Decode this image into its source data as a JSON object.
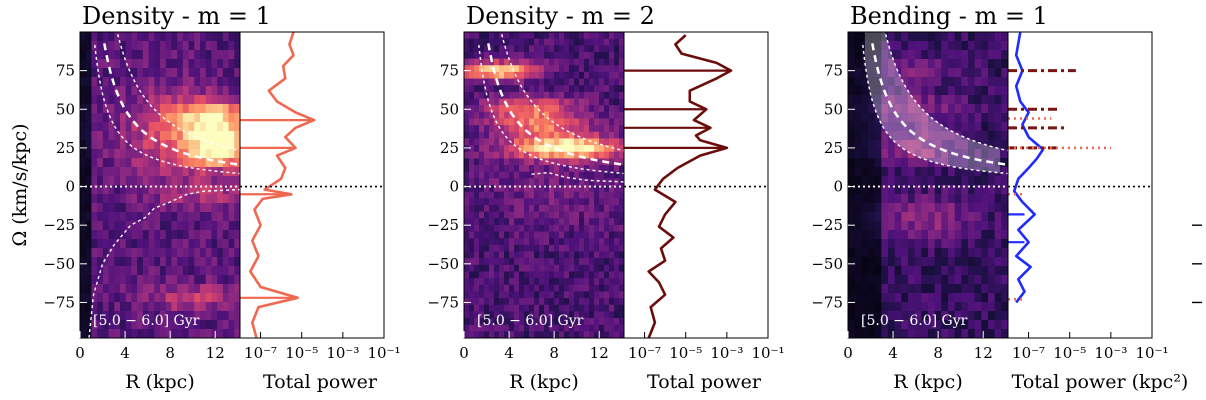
{
  "colors": {
    "density_m1": "#f0684f",
    "density_m2": "#6b0d0b",
    "bending": "#1f2bff",
    "bending_dashdot": "#7a1612",
    "bending_dotted": "#f0684f"
  },
  "chart_data": [
    {
      "type": "heatmap",
      "title": "Density - m = 1",
      "xlabel": "R (kpc)",
      "ylabel": "Ω (km/s/kpc)",
      "xticks": [
        "0",
        "4",
        "8",
        "12"
      ],
      "yticks": [
        "75",
        "50",
        "25",
        "0",
        "−25",
        "−50",
        "−75"
      ],
      "xlim": [
        0,
        14.2
      ],
      "ylim": [
        -98,
        100
      ],
      "inset_label": "[5.0 − 6.0] Gyr",
      "power_panel": {
        "type": "line",
        "xlabel": "Total power",
        "xticks": [
          "10⁻⁷",
          "10⁻⁵",
          "10⁻³",
          "10⁻¹"
        ],
        "xlim_log10": [
          -8,
          -1
        ],
        "profile": [
          [
            -7.2,
            -98
          ],
          [
            -7.4,
            -88
          ],
          [
            -7.1,
            -78
          ],
          [
            -5.2,
            -72
          ],
          [
            -7.0,
            -65
          ],
          [
            -7.5,
            -55
          ],
          [
            -7.1,
            -45
          ],
          [
            -7.4,
            -35
          ],
          [
            -7.0,
            -25
          ],
          [
            -7.3,
            -15
          ],
          [
            -6.9,
            -8
          ],
          [
            -5.5,
            -5
          ],
          [
            -6.8,
            -2
          ],
          [
            -6.0,
            5
          ],
          [
            -5.8,
            12
          ],
          [
            -6.2,
            20
          ],
          [
            -5.3,
            25
          ],
          [
            -5.8,
            32
          ],
          [
            -5.3,
            38
          ],
          [
            -4.4,
            43
          ],
          [
            -5.3,
            48
          ],
          [
            -6.2,
            55
          ],
          [
            -6.6,
            62
          ],
          [
            -5.8,
            70
          ],
          [
            -5.9,
            78
          ],
          [
            -5.4,
            85
          ],
          [
            -5.6,
            92
          ],
          [
            -5.4,
            100
          ]
        ],
        "peaks_omega": [
          43,
          25,
          -5,
          -72
        ]
      }
    },
    {
      "type": "heatmap",
      "title": "Density - m = 2",
      "xlabel": "R (kpc)",
      "ylabel": "",
      "xticks": [
        "0",
        "4",
        "8",
        "12"
      ],
      "yticks": [
        "75",
        "50",
        "25",
        "0",
        "−25",
        "−50",
        "−75"
      ],
      "xlim": [
        0,
        14.2
      ],
      "ylim": [
        -98,
        100
      ],
      "inset_label": "[5.0 − 6.0] Gyr",
      "power_panel": {
        "type": "line",
        "xlabel": "Total power",
        "xticks": [
          "10⁻⁷",
          "10⁻⁵",
          "10⁻³",
          "10⁻¹"
        ],
        "xlim_log10": [
          -8,
          -1
        ],
        "profile": [
          [
            -6.8,
            -98
          ],
          [
            -6.5,
            -88
          ],
          [
            -6.7,
            -78
          ],
          [
            -6.0,
            -70
          ],
          [
            -6.3,
            -62
          ],
          [
            -6.8,
            -55
          ],
          [
            -6.0,
            -48
          ],
          [
            -6.2,
            -40
          ],
          [
            -5.6,
            -33
          ],
          [
            -6.3,
            -26
          ],
          [
            -6.0,
            -18
          ],
          [
            -5.5,
            -10
          ],
          [
            -6.5,
            -2
          ],
          [
            -6.1,
            5
          ],
          [
            -5.4,
            12
          ],
          [
            -4.3,
            20
          ],
          [
            -3.0,
            25
          ],
          [
            -4.3,
            30
          ],
          [
            -4.5,
            33
          ],
          [
            -3.8,
            38
          ],
          [
            -4.6,
            43
          ],
          [
            -4.0,
            50
          ],
          [
            -4.8,
            55
          ],
          [
            -4.8,
            62
          ],
          [
            -3.5,
            70
          ],
          [
            -2.8,
            75
          ],
          [
            -3.5,
            80
          ],
          [
            -5.2,
            86
          ],
          [
            -5.5,
            92
          ],
          [
            -5.0,
            98
          ]
        ],
        "peaks_omega": [
          75,
          50,
          38,
          25
        ]
      }
    },
    {
      "type": "heatmap",
      "title": "Bending - m = 1",
      "xlabel": "R (kpc)",
      "ylabel": "",
      "xticks": [
        "0",
        "4",
        "8",
        "12"
      ],
      "yticks": [
        "75",
        "50",
        "25",
        "0",
        "−25",
        "−50",
        "−75"
      ],
      "xlim": [
        0,
        14.2
      ],
      "ylim": [
        -98,
        100
      ],
      "inset_label": "[5.0 − 6.0] Gyr",
      "power_panel": {
        "type": "line",
        "xlabel": "Total power (kpc²)",
        "xticks": [
          "10⁻⁷",
          "10⁻⁵",
          "10⁻³",
          "10⁻¹"
        ],
        "xlim_log10": [
          -8,
          -1
        ],
        "profile": [
          [
            -7.6,
            -75
          ],
          [
            -7.2,
            -68
          ],
          [
            -7.5,
            -60
          ],
          [
            -6.9,
            -52
          ],
          [
            -7.6,
            -45
          ],
          [
            -7.0,
            -36
          ],
          [
            -7.5,
            -28
          ],
          [
            -6.7,
            -18
          ],
          [
            -7.3,
            -10
          ],
          [
            -7.7,
            -3
          ],
          [
            -7.5,
            5
          ],
          [
            -7.0,
            12
          ],
          [
            -6.6,
            18
          ],
          [
            -6.3,
            24
          ],
          [
            -7.0,
            32
          ],
          [
            -7.3,
            40
          ],
          [
            -7.0,
            48
          ],
          [
            -7.4,
            55
          ],
          [
            -7.6,
            65
          ],
          [
            -7.3,
            75
          ],
          [
            -7.6,
            85
          ],
          [
            -7.4,
            100
          ]
        ],
        "dashdot_segments": [
          [
            75,
            -4.7
          ],
          [
            50,
            -5.5
          ],
          [
            38,
            -5.2
          ],
          [
            25,
            -5.6
          ]
        ],
        "dotted_segments": [
          [
            25,
            -3.0
          ],
          [
            44,
            -5.9
          ],
          [
            -5,
            -7.2
          ],
          [
            -73,
            -7.2
          ]
        ],
        "blue_ticks": [
          -36,
          -18
        ]
      }
    }
  ]
}
